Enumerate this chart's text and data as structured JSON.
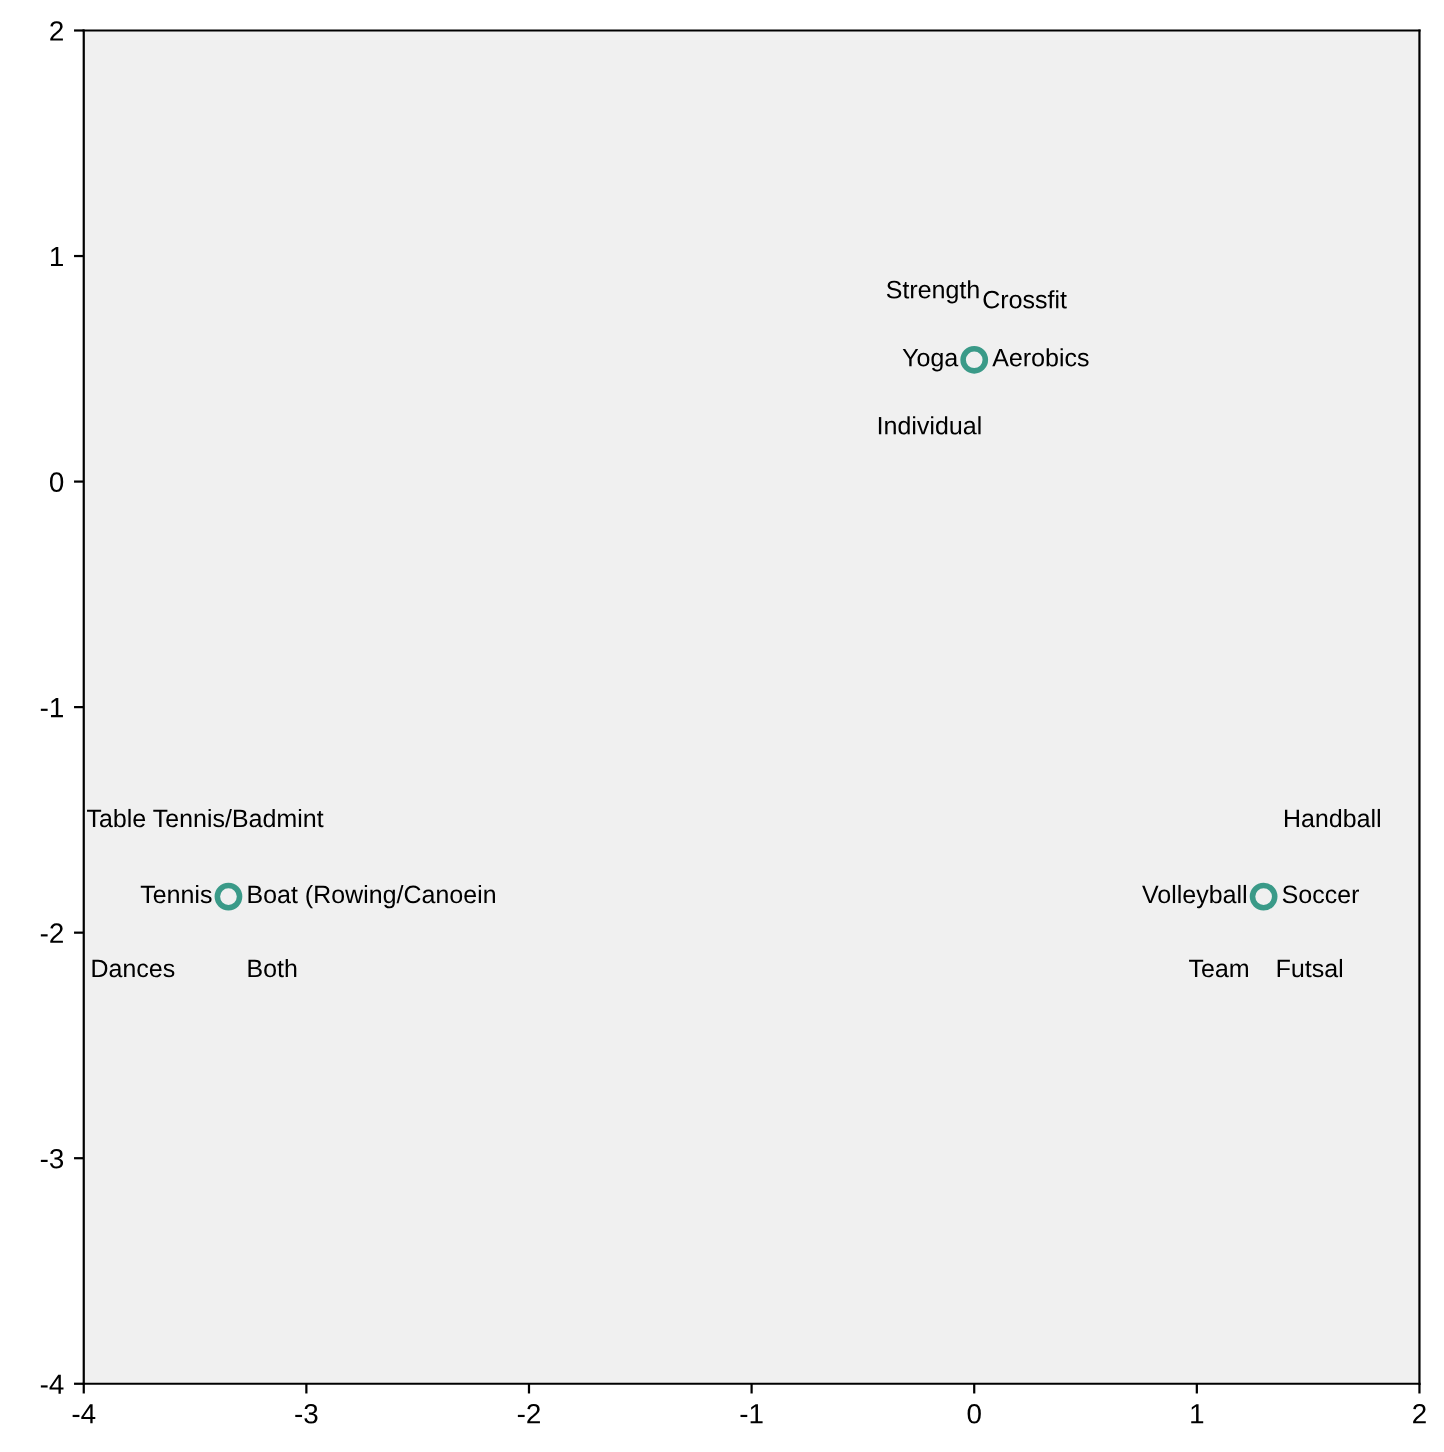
{
  "chart_data": {
    "type": "scatter",
    "x": [
      0,
      -3.35,
      1.3
    ],
    "values": [
      0.54,
      -1.84,
      -1.84
    ],
    "color": "#3a9a88",
    "marker": "circle",
    "grid": false,
    "legend": false,
    "xlim": [
      -4,
      2
    ],
    "ylim": [
      -4,
      2
    ],
    "xticks": [
      -4,
      -3,
      -2,
      -1,
      0,
      1,
      2
    ],
    "yticks": [
      -4,
      -3,
      -2,
      -1,
      0,
      1,
      2
    ],
    "annotations": [
      "Strength",
      "Crossfit",
      "Yoga",
      "Aerobics",
      "Individual",
      "Table Tennis/Badmint",
      "Tennis",
      "Boat (Rowing/Canoein",
      "Dances",
      "Both",
      "Handball",
      "Volleyball",
      "Soccer",
      "Team",
      "Futsal"
    ]
  }
}
